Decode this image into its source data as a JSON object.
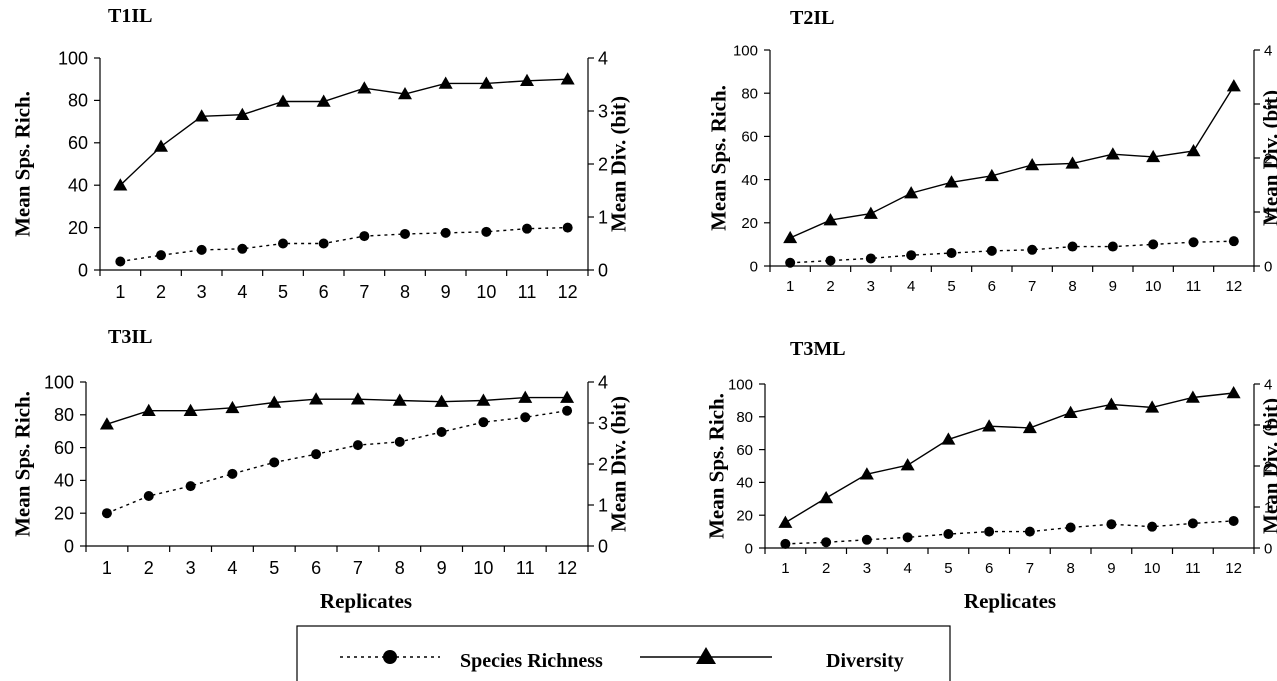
{
  "chart_data": [
    {
      "type": "line",
      "title": "T1IL",
      "xlabel": "",
      "ylabel": "Mean Sps. Rich.",
      "y2label": "Mean Div. (bit)",
      "x": [
        1,
        2,
        3,
        4,
        5,
        6,
        7,
        8,
        9,
        10,
        11,
        12
      ],
      "ylim": [
        0,
        100
      ],
      "y2lim": [
        0,
        4
      ],
      "yticks": [
        0,
        20,
        40,
        60,
        80,
        100
      ],
      "y2ticks": [
        0,
        1,
        2,
        3,
        4
      ],
      "series": [
        {
          "name": "Species Richness",
          "axis": "left",
          "marker": "circle",
          "dash": true,
          "values": [
            4,
            7,
            9.5,
            10,
            12.5,
            12.5,
            16,
            17,
            17.5,
            18,
            19.5,
            20
          ]
        },
        {
          "name": "Diversity",
          "axis": "right",
          "marker": "triangle",
          "dash": false,
          "values": [
            1.6,
            2.33,
            2.9,
            2.93,
            3.18,
            3.18,
            3.43,
            3.32,
            3.52,
            3.52,
            3.57,
            3.6
          ]
        }
      ]
    },
    {
      "type": "line",
      "title": "T2IL",
      "xlabel": "",
      "ylabel": "Mean Sps. Rich.",
      "y2label": "Mean Div. (bit)",
      "x": [
        1,
        2,
        3,
        4,
        5,
        6,
        7,
        8,
        9,
        10,
        11,
        12
      ],
      "ylim": [
        0,
        100
      ],
      "y2lim": [
        0,
        4
      ],
      "yticks": [
        0,
        20,
        40,
        60,
        80,
        100
      ],
      "y2ticks": [
        0,
        1,
        2,
        3,
        4
      ],
      "series": [
        {
          "name": "Species Richness",
          "axis": "left",
          "marker": "circle",
          "dash": true,
          "values": [
            1.5,
            2.5,
            3.5,
            5,
            6,
            7,
            7.5,
            9,
            9,
            10,
            11,
            11.5
          ]
        },
        {
          "name": "Diversity",
          "axis": "right",
          "marker": "triangle",
          "dash": false,
          "values": [
            0.52,
            0.85,
            0.97,
            1.35,
            1.55,
            1.67,
            1.87,
            1.9,
            2.07,
            2.02,
            2.13,
            3.33
          ]
        }
      ]
    },
    {
      "type": "line",
      "title": "T3IL",
      "xlabel": "Replicates",
      "ylabel": "Mean Sps. Rich.",
      "y2label": "Mean Div. (bit)",
      "x": [
        1,
        2,
        3,
        4,
        5,
        6,
        7,
        8,
        9,
        10,
        11,
        12
      ],
      "ylim": [
        0,
        100
      ],
      "y2lim": [
        0,
        4
      ],
      "yticks": [
        0,
        20,
        40,
        60,
        80,
        100
      ],
      "y2ticks": [
        0,
        1,
        2,
        3,
        4
      ],
      "series": [
        {
          "name": "Species Richness",
          "axis": "left",
          "marker": "circle",
          "dash": true,
          "values": [
            20,
            30.5,
            36.5,
            44,
            51,
            56,
            61.5,
            63.5,
            69.5,
            75.5,
            78.5,
            82.5
          ]
        },
        {
          "name": "Diversity",
          "axis": "right",
          "marker": "triangle",
          "dash": false,
          "values": [
            2.97,
            3.3,
            3.3,
            3.37,
            3.5,
            3.58,
            3.58,
            3.55,
            3.52,
            3.55,
            3.62,
            3.62
          ]
        }
      ]
    },
    {
      "type": "line",
      "title": "T3ML",
      "xlabel": "Replicates",
      "ylabel": "Mean Sps. Rich.",
      "y2label": "Mean Div. (bit)",
      "x": [
        1,
        2,
        3,
        4,
        5,
        6,
        7,
        8,
        9,
        10,
        11,
        12
      ],
      "ylim": [
        0,
        100
      ],
      "y2lim": [
        0,
        4
      ],
      "yticks": [
        0,
        20,
        40,
        60,
        80,
        100
      ],
      "y2ticks": [
        0,
        1,
        2,
        3,
        4
      ],
      "series": [
        {
          "name": "Species Richness",
          "axis": "left",
          "marker": "circle",
          "dash": true,
          "values": [
            2.5,
            3.5,
            5,
            6.5,
            8.5,
            10,
            10,
            12.5,
            14.5,
            13,
            15,
            16.5
          ]
        },
        {
          "name": "Diversity",
          "axis": "right",
          "marker": "triangle",
          "dash": false,
          "values": [
            0.62,
            1.22,
            1.8,
            2.02,
            2.65,
            2.97,
            2.93,
            3.3,
            3.5,
            3.43,
            3.67,
            3.78
          ]
        }
      ]
    }
  ],
  "legend": {
    "items": [
      {
        "label": "Species Richness",
        "marker": "circle",
        "dash": true
      },
      {
        "label": "Diversity",
        "marker": "triangle",
        "dash": false
      }
    ]
  }
}
